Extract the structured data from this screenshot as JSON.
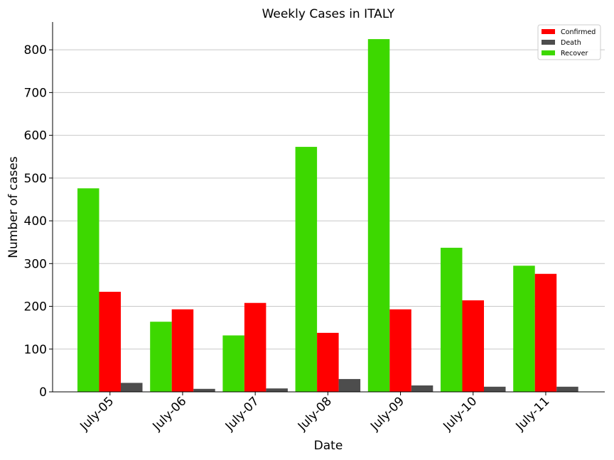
{
  "chart_data": {
    "type": "bar",
    "title": "Weekly Cases in ITALY",
    "xlabel": "Date",
    "ylabel": "Number of cases",
    "categories": [
      "July-05",
      "July-06",
      "July-07",
      "July-08",
      "July-09",
      "July-10",
      "July-11"
    ],
    "ylim": [
      0,
      865
    ],
    "yticks": [
      0,
      100,
      200,
      300,
      400,
      500,
      600,
      700,
      800
    ],
    "grid": "horizontal",
    "legend_position": "top-right",
    "series": [
      {
        "name": "Recover",
        "color": "#3dd800",
        "values": [
          476,
          164,
          132,
          573,
          825,
          337,
          295
        ]
      },
      {
        "name": "Confirmed",
        "color": "#ff0000",
        "values": [
          234,
          193,
          208,
          138,
          193,
          214,
          276
        ]
      },
      {
        "name": "Death",
        "color": "#4d4d4d",
        "values": [
          21,
          7,
          8,
          30,
          15,
          12,
          12
        ]
      }
    ],
    "legend_order": [
      "Confirmed",
      "Death",
      "Recover"
    ]
  }
}
